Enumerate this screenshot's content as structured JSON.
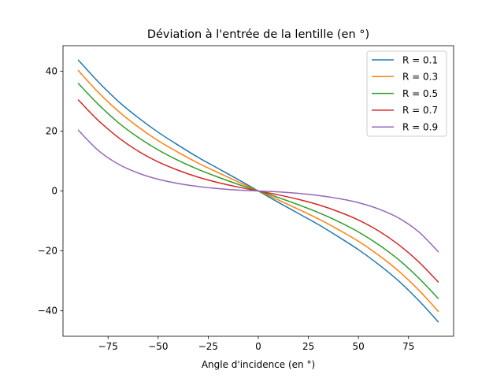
{
  "chart_data": {
    "type": "line",
    "title": "Déviation à l'entrée de la lentille (en °)",
    "xlabel": "Angle d'incidence (en °)",
    "ylabel": "",
    "xlim": [
      -97.5,
      97.5
    ],
    "ylim": [
      -48.5,
      48.5
    ],
    "xticks": [
      -75,
      -50,
      -25,
      0,
      25,
      50,
      75
    ],
    "xtick_labels": [
      "−75",
      "−50",
      "−25",
      "0",
      "25",
      "50",
      "75"
    ],
    "yticks": [
      -40,
      -20,
      0,
      20,
      40
    ],
    "ytick_labels": [
      "−40",
      "−20",
      "0",
      "20",
      "40"
    ],
    "grid": false,
    "legend_position": "top-right",
    "x": [
      -90,
      -80,
      -70,
      -60,
      -50,
      -40,
      -30,
      -20,
      -10,
      0,
      10,
      20,
      30,
      40,
      50,
      60,
      70,
      80,
      90
    ],
    "series": [
      {
        "name": "R = 0.1",
        "color": "#1f77b4",
        "values": [
          43.8,
          36.5,
          30.0,
          24.5,
          19.6,
          15.3,
          11.2,
          7.5,
          3.8,
          0.0,
          -3.8,
          -7.5,
          -11.2,
          -15.3,
          -19.6,
          -24.5,
          -30.0,
          -36.5,
          -43.8
        ]
      },
      {
        "name": "R = 0.3",
        "color": "#ff7f0e",
        "values": [
          40.3,
          33.0,
          26.7,
          21.4,
          16.8,
          12.9,
          9.3,
          6.1,
          3.0,
          0.0,
          -3.0,
          -6.1,
          -9.3,
          -12.9,
          -16.8,
          -21.4,
          -26.7,
          -33.0,
          -40.3
        ]
      },
      {
        "name": "R = 0.5",
        "color": "#2ca02c",
        "values": [
          36.0,
          29.0,
          22.9,
          17.9,
          13.7,
          10.2,
          7.2,
          4.6,
          2.2,
          0.0,
          -2.2,
          -4.6,
          -7.2,
          -10.2,
          -13.7,
          -17.9,
          -22.9,
          -29.0,
          -36.0
        ]
      },
      {
        "name": "R = 0.7",
        "color": "#d62728",
        "values": [
          30.5,
          23.6,
          17.9,
          13.3,
          9.7,
          6.9,
          4.6,
          2.8,
          1.3,
          0.0,
          -1.3,
          -2.8,
          -4.6,
          -6.9,
          -9.7,
          -13.3,
          -17.9,
          -23.6,
          -30.5
        ]
      },
      {
        "name": "R = 0.9",
        "color": "#9467bd",
        "values": [
          20.4,
          13.6,
          9.0,
          6.0,
          3.9,
          2.5,
          1.5,
          0.8,
          0.3,
          0.0,
          -0.3,
          -0.8,
          -1.5,
          -2.5,
          -3.9,
          -6.0,
          -9.0,
          -13.6,
          -20.4
        ]
      }
    ]
  }
}
